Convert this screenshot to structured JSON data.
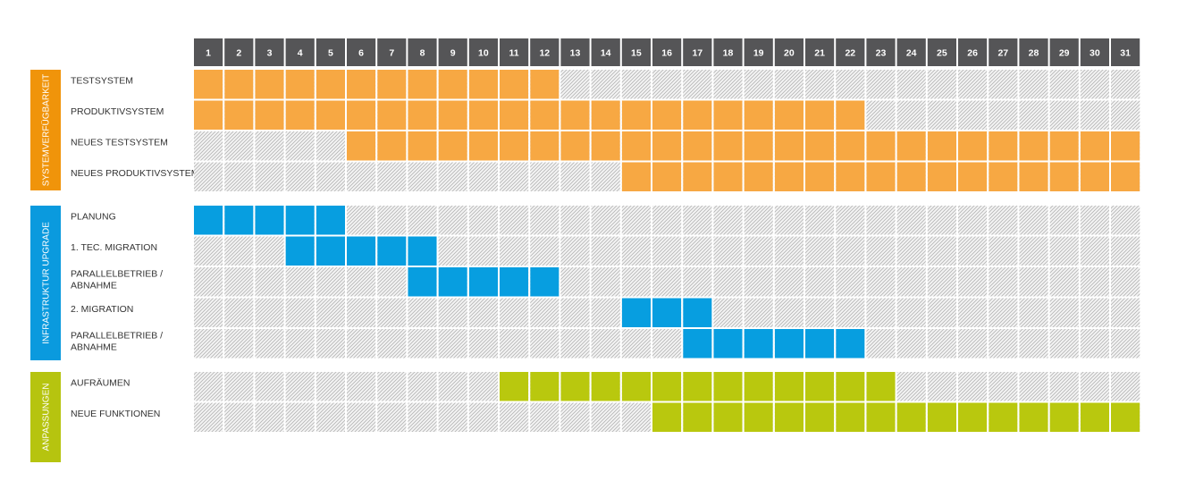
{
  "colors": {
    "header": "#555557",
    "hatch_bg": "#f4f4f4",
    "hatch_line": "#b4b4b4",
    "group_orange": "#f0940a",
    "group_blue": "#0a9ade",
    "group_green": "#b6c40f",
    "bar_orange": "#f7a843",
    "bar_blue": "#079ee0",
    "bar_green": "#b9c80e"
  },
  "chart_data": {
    "type": "gantt",
    "days": [
      "1",
      "2",
      "3",
      "4",
      "5",
      "6",
      "7",
      "8",
      "9",
      "10",
      "11",
      "12",
      "13",
      "14",
      "15",
      "16",
      "17",
      "18",
      "19",
      "20",
      "21",
      "22",
      "23",
      "24",
      "25",
      "26",
      "27",
      "28",
      "29",
      "30",
      "31"
    ],
    "groups": [
      {
        "label": "SYSTEMVERFÜGBARKEIT",
        "color": "orange",
        "rows": [
          {
            "label": [
              "TESTSYSTEM"
            ],
            "start": 1,
            "end": 12
          },
          {
            "label": [
              "PRODUKTIVSYSTEM"
            ],
            "start": 1,
            "end": 22
          },
          {
            "label": [
              "NEUES TESTSYSTEM"
            ],
            "start": 6,
            "end": 31
          },
          {
            "label": [
              "NEUES PRODUKTIVSYSTEM"
            ],
            "start": 15,
            "end": 31
          }
        ]
      },
      {
        "label": "INFRASTRUKTUR UPGRADE",
        "color": "blue",
        "rows": [
          {
            "label": [
              "PLANUNG"
            ],
            "start": 1,
            "end": 5
          },
          {
            "label": [
              "1. TEC. MIGRATION"
            ],
            "start": 4,
            "end": 8
          },
          {
            "label": [
              "PARALLELBETRIEB /",
              "ABNAHME"
            ],
            "start": 8,
            "end": 12
          },
          {
            "label": [
              "2. MIGRATION"
            ],
            "start": 15,
            "end": 17
          },
          {
            "label": [
              "PARALLELBETRIEB /",
              "ABNAHME"
            ],
            "start": 17,
            "end": 22
          }
        ]
      },
      {
        "label": "ANPASSUNGEN",
        "color": "green",
        "rows": [
          {
            "label": [
              "AUFRÄUMEN"
            ],
            "start": 11,
            "end": 23
          },
          {
            "label": [
              "NEUE FUNKTIONEN"
            ],
            "start": 16,
            "end": 31
          }
        ]
      }
    ]
  }
}
